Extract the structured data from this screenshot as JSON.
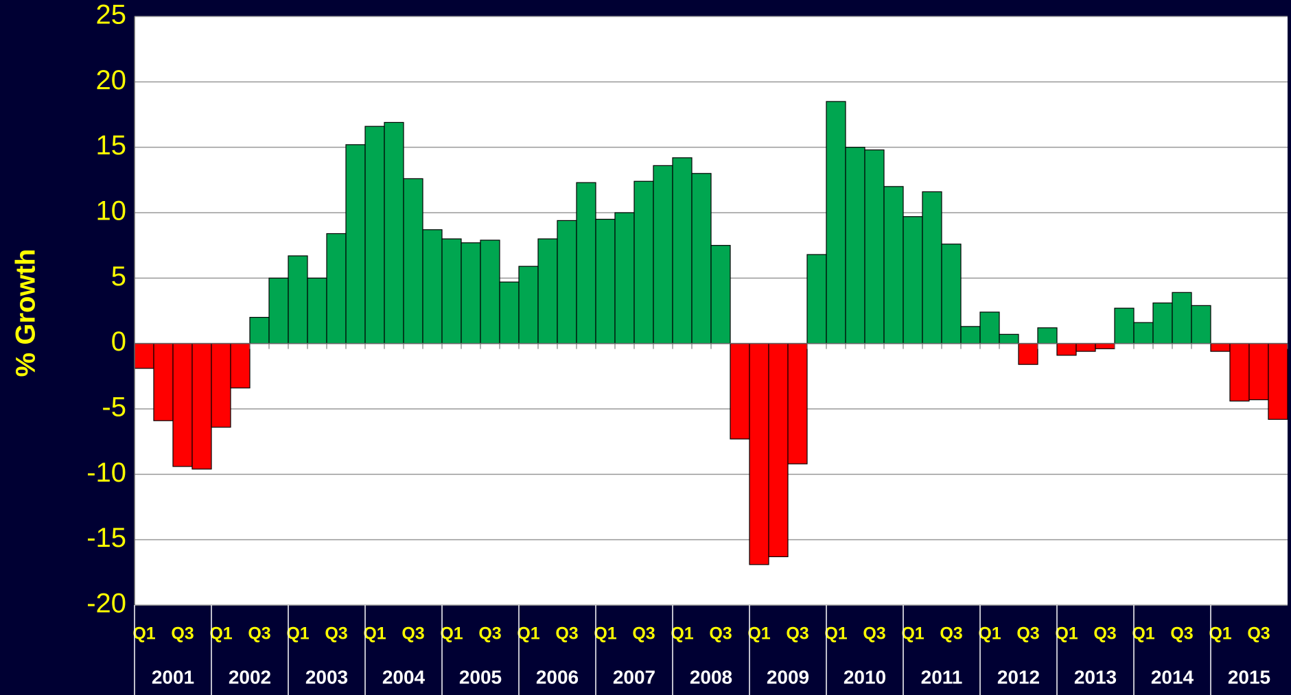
{
  "chart_data": {
    "type": "bar",
    "y_label": "% Growth",
    "categories": [
      "Q1",
      null,
      "Q3",
      null,
      "Q1",
      null,
      "Q3",
      null,
      "Q1",
      null,
      "Q3",
      null,
      "Q1",
      null,
      "Q3",
      null,
      "Q1",
      null,
      "Q3",
      null,
      "Q1",
      null,
      "Q3",
      null,
      "Q1",
      null,
      "Q3",
      null,
      "Q1",
      null,
      "Q3",
      null,
      "Q1",
      null,
      "Q3",
      null,
      "Q1",
      null,
      "Q3",
      null,
      "Q1",
      null,
      "Q3",
      null,
      "Q1",
      null,
      "Q3",
      null,
      "Q1",
      null,
      "Q3",
      null,
      "Q1",
      null,
      "Q3",
      null,
      "Q1",
      null,
      "Q3",
      null
    ],
    "years": [
      "2001",
      "2002",
      "2003",
      "2004",
      "2005",
      "2006",
      "2007",
      "2008",
      "2009",
      "2010",
      "2011",
      "2012",
      "2013",
      "2014",
      "2015"
    ],
    "values": [
      -1.9,
      -5.9,
      -9.4,
      -9.6,
      -6.4,
      -3.4,
      2.0,
      5.0,
      6.7,
      5.0,
      8.4,
      15.2,
      16.6,
      16.9,
      12.6,
      8.7,
      8.0,
      7.7,
      7.9,
      4.7,
      5.9,
      8.0,
      9.4,
      12.3,
      9.5,
      10.0,
      12.4,
      13.6,
      14.2,
      13.0,
      7.5,
      -7.3,
      -16.9,
      -16.3,
      -9.2,
      6.8,
      18.5,
      15.0,
      14.8,
      12.0,
      9.7,
      11.6,
      7.6,
      1.3,
      2.4,
      0.7,
      -1.6,
      1.2,
      -0.9,
      -0.6,
      -0.4,
      2.7,
      1.6,
      3.1,
      3.9,
      2.9,
      -0.6,
      -4.4,
      -4.3,
      -5.8
    ],
    "positive_color": "#00a650",
    "negative_color": "#ff0000",
    "ylim": [
      -20,
      25
    ],
    "yticks": [
      -20,
      -15,
      -10,
      -5,
      0,
      5,
      10,
      15,
      20,
      25
    ],
    "grid": true
  }
}
